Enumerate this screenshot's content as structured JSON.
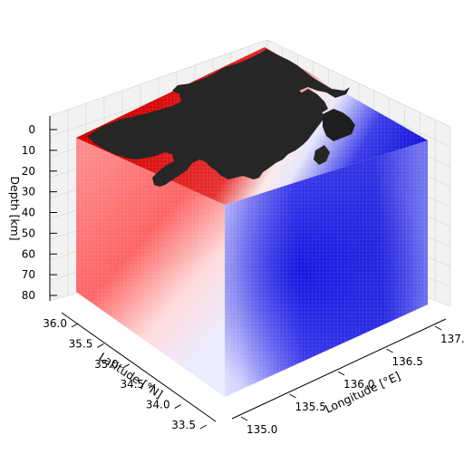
{
  "chart_data": {
    "type": "volume-3d",
    "xlabel": "Longitude [°E]",
    "ylabel": "Latitude [°N]",
    "zlabel": "Depth [km]",
    "xlim": [
      135.0,
      137.0
    ],
    "ylim": [
      33.5,
      36.0
    ],
    "zlim": [
      0,
      80
    ],
    "z_inverted": true,
    "x_ticks": [
      "135.0",
      "135.5",
      "136.0",
      "136.5",
      "137.0"
    ],
    "y_ticks": [
      "33.5",
      "34.0",
      "34.5",
      "35.0",
      "35.5",
      "36.0"
    ],
    "z_ticks": [
      "0",
      "10",
      "20",
      "30",
      "40",
      "50",
      "60",
      "70",
      "80"
    ],
    "colormap": "seismic",
    "colors": {
      "positive": "#e00000",
      "neutral": "#ffffff",
      "negative": "#0000e0",
      "land": "#262626"
    },
    "grid": true
  }
}
